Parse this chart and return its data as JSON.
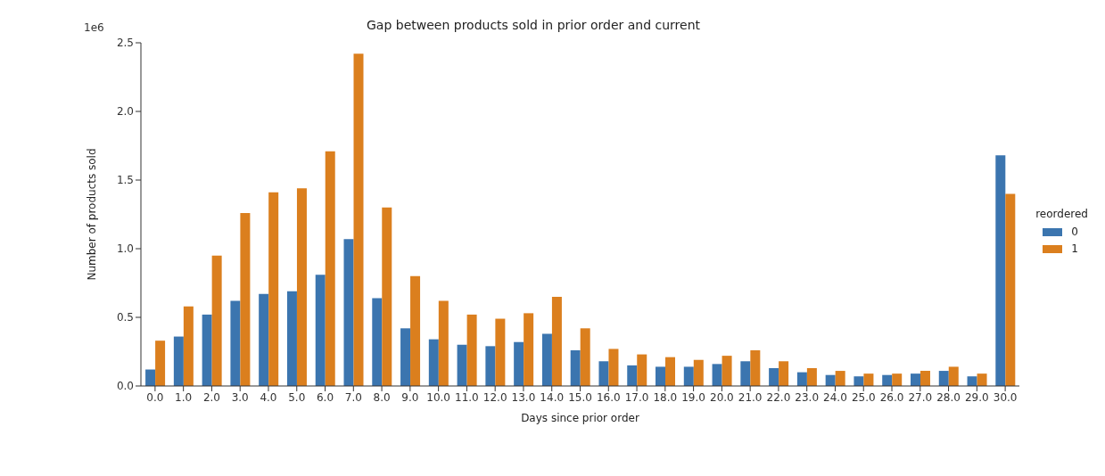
{
  "chart_data": {
    "type": "bar",
    "title": "Gap between products sold in prior order and current",
    "xlabel": "Days since prior order",
    "ylabel": "Number of products sold",
    "legend_title": "reordered",
    "annotations": [
      "1e6"
    ],
    "categories": [
      "0.0",
      "1.0",
      "2.0",
      "3.0",
      "4.0",
      "5.0",
      "6.0",
      "7.0",
      "8.0",
      "9.0",
      "10.0",
      "11.0",
      "12.0",
      "13.0",
      "14.0",
      "15.0",
      "16.0",
      "17.0",
      "18.0",
      "19.0",
      "20.0",
      "21.0",
      "22.0",
      "23.0",
      "24.0",
      "25.0",
      "26.0",
      "27.0",
      "28.0",
      "29.0",
      "30.0"
    ],
    "series": [
      {
        "name": "0",
        "color": "#3b75af",
        "values": [
          0.12,
          0.36,
          0.52,
          0.62,
          0.67,
          0.69,
          0.81,
          1.07,
          0.64,
          0.42,
          0.34,
          0.3,
          0.29,
          0.32,
          0.38,
          0.26,
          0.18,
          0.15,
          0.14,
          0.14,
          0.16,
          0.18,
          0.13,
          0.1,
          0.08,
          0.07,
          0.08,
          0.09,
          0.11,
          0.07,
          1.68
        ]
      },
      {
        "name": "1",
        "color": "#db7f1e",
        "values": [
          0.33,
          0.58,
          0.95,
          1.26,
          1.41,
          1.44,
          1.71,
          2.42,
          1.3,
          0.8,
          0.62,
          0.52,
          0.49,
          0.53,
          0.65,
          0.42,
          0.27,
          0.23,
          0.21,
          0.19,
          0.22,
          0.26,
          0.18,
          0.13,
          0.11,
          0.09,
          0.09,
          0.11,
          0.14,
          0.09,
          1.4
        ]
      }
    ],
    "ylim": [
      0,
      2.5
    ],
    "yticks": [
      {
        "value": 0,
        "label": "0.0"
      },
      {
        "value": 0.5,
        "label": "0.5"
      },
      {
        "value": 1,
        "label": "1.0"
      },
      {
        "value": 1.5,
        "label": "1.5"
      },
      {
        "value": 2,
        "label": "2.0"
      },
      {
        "value": 2.5,
        "label": "2.5"
      }
    ],
    "grid": false,
    "legend": "right"
  }
}
